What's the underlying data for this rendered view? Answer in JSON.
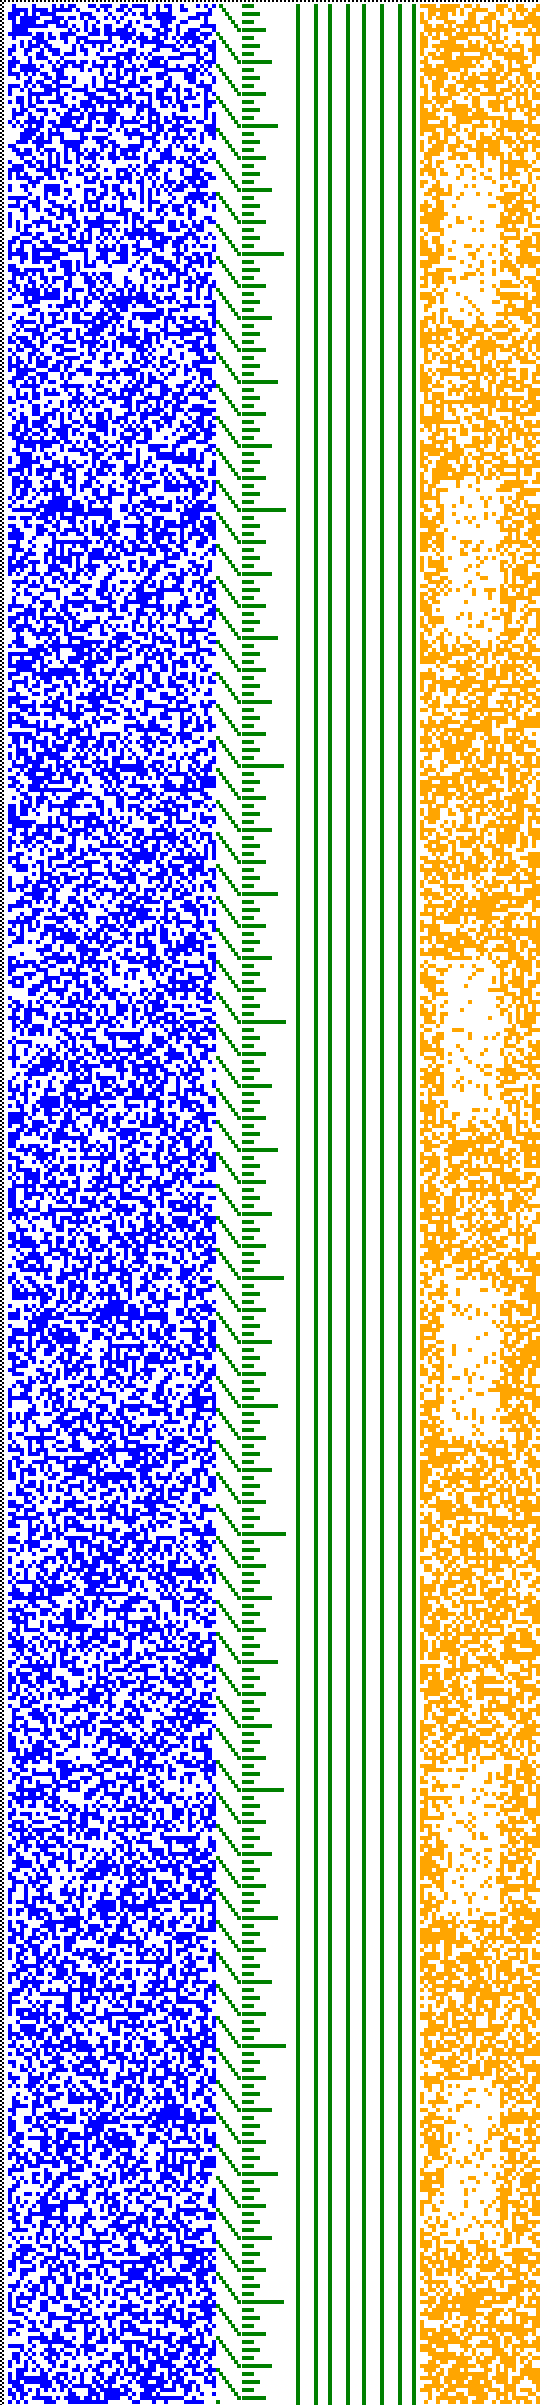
{
  "visualization": {
    "kind": "cellular-automaton-pattern",
    "background": "#ffffff",
    "panels": [
      {
        "name": "left-border",
        "pattern": "dotted-column",
        "color": "#000000"
      },
      {
        "name": "noise-blue",
        "pattern": "random-cells",
        "color": "#0000ff",
        "density": 0.5
      },
      {
        "name": "staircase-green",
        "pattern": "counter-staircase",
        "color": "#008000"
      },
      {
        "name": "stripes-green",
        "pattern": "vertical-stripes",
        "color": "#008000"
      },
      {
        "name": "noise-orange",
        "pattern": "random-cells-with-gaps",
        "color": "#ffa500",
        "density": 0.6
      }
    ],
    "top_border": {
      "pattern": "dotted-row",
      "color": "#000000"
    }
  }
}
